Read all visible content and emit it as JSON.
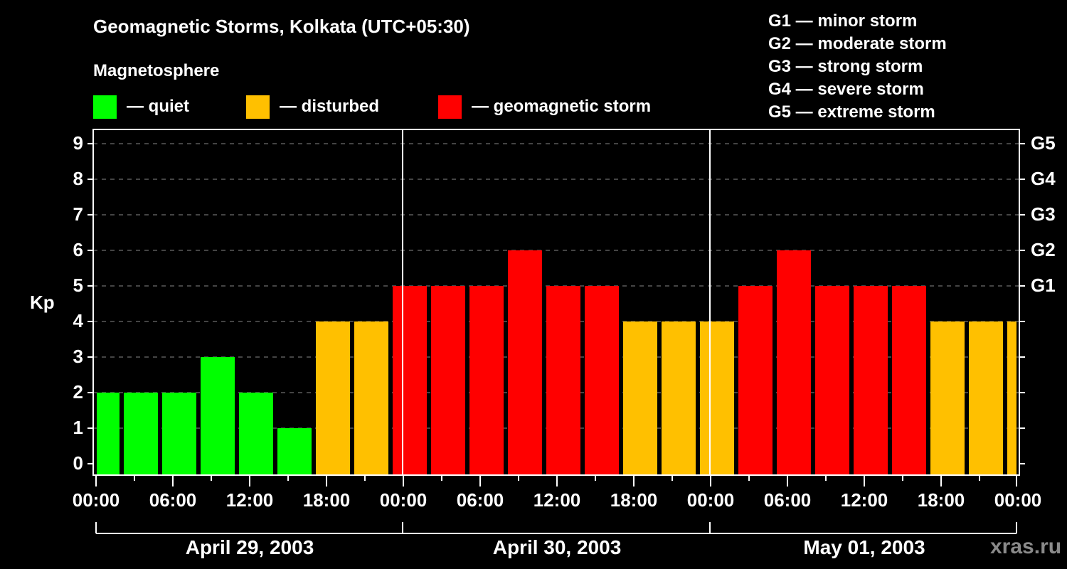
{
  "title": "Geomagnetic Storms, Kolkata (UTC+05:30)",
  "legend": {
    "heading": "Magnetosphere",
    "items": [
      {
        "label": "— quiet",
        "color": "#00ff00"
      },
      {
        "label": "— disturbed",
        "color": "#ffc000"
      },
      {
        "label": "— geomagnetic storm",
        "color": "#ff0000"
      }
    ]
  },
  "g_scale": [
    "G1 — minor storm",
    "G2 — moderate storm",
    "G3 — strong storm",
    "G4 — severe storm",
    "G5 — extreme storm"
  ],
  "watermark": "xras.ru",
  "chart_data": {
    "type": "bar",
    "title": "Geomagnetic Storms, Kolkata (UTC+05:30)",
    "xlabel": "",
    "ylabel": "Kp",
    "ylim": [
      0,
      9
    ],
    "y_ticks": [
      0,
      1,
      2,
      3,
      4,
      5,
      6,
      7,
      8,
      9
    ],
    "right_axis_ticks": [
      {
        "kp": 5,
        "label": "G1"
      },
      {
        "kp": 6,
        "label": "G2"
      },
      {
        "kp": 7,
        "label": "G3"
      },
      {
        "kp": 8,
        "label": "G4"
      },
      {
        "kp": 9,
        "label": "G5"
      }
    ],
    "x_tick_labels": [
      "00:00",
      "06:00",
      "12:00",
      "18:00",
      "00:00",
      "06:00",
      "12:00",
      "18:00",
      "00:00",
      "06:00",
      "12:00",
      "18:00",
      "00:00"
    ],
    "date_labels": [
      "April 29, 2003",
      "April 30, 2003",
      "May 01, 2003"
    ],
    "grid": "horizontal dashed at each Kp level",
    "interval_hours": 3,
    "values": [
      2,
      2,
      2,
      3,
      2,
      1,
      4,
      4,
      5,
      5,
      5,
      6,
      5,
      5,
      4,
      4,
      4,
      5,
      6,
      5,
      5,
      5,
      4,
      4,
      4
    ],
    "color_rule": {
      "quiet": "Kp<4 #00ff00",
      "disturbed": "Kp=4 #ffc000",
      "storm": "Kp>=5 #ff0000"
    }
  }
}
